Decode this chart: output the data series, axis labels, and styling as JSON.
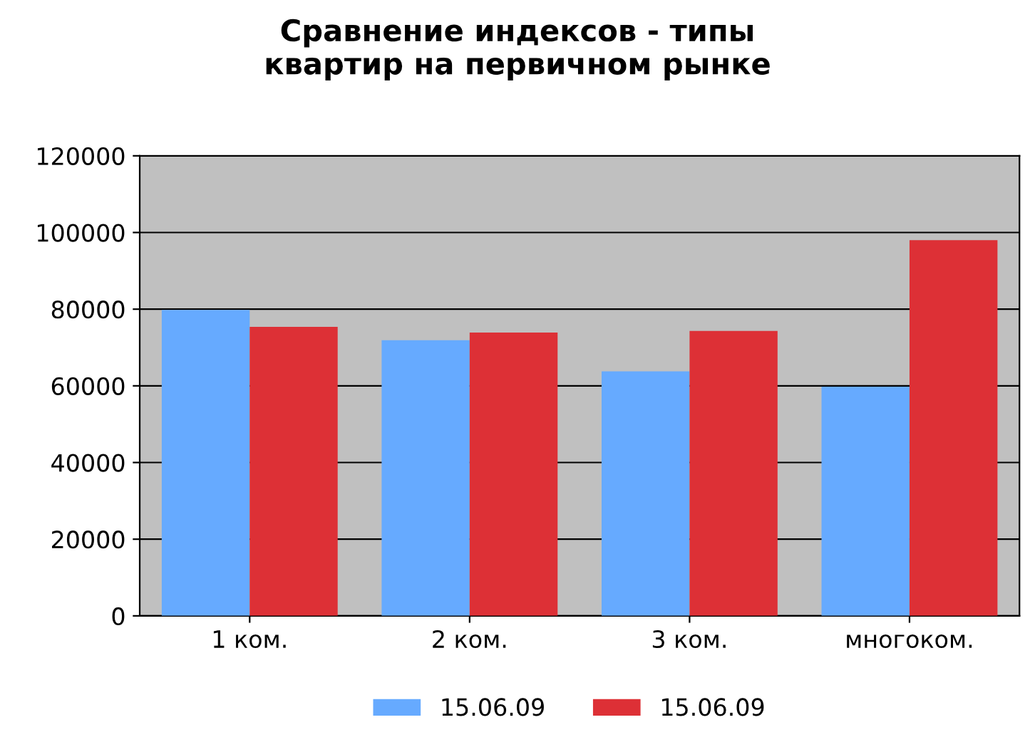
{
  "chart_data": {
    "type": "bar",
    "title": "Сравнение индексов - типы\nквартир на первичном рынке",
    "categories": [
      "1 ком.",
      "2 ком.",
      "3 ком.",
      "многоком."
    ],
    "series": [
      {
        "name": "15.06.09",
        "color": "#66aaff",
        "values": [
          79800,
          71900,
          63800,
          59800
        ]
      },
      {
        "name": "15.06.09",
        "color": "#dd3036",
        "values": [
          75400,
          73900,
          74300,
          98000
        ]
      }
    ],
    "ylim": [
      0,
      120000
    ],
    "yticks": [
      0,
      20000,
      40000,
      60000,
      80000,
      100000,
      120000
    ],
    "grid": "y",
    "legend": "bottom"
  }
}
